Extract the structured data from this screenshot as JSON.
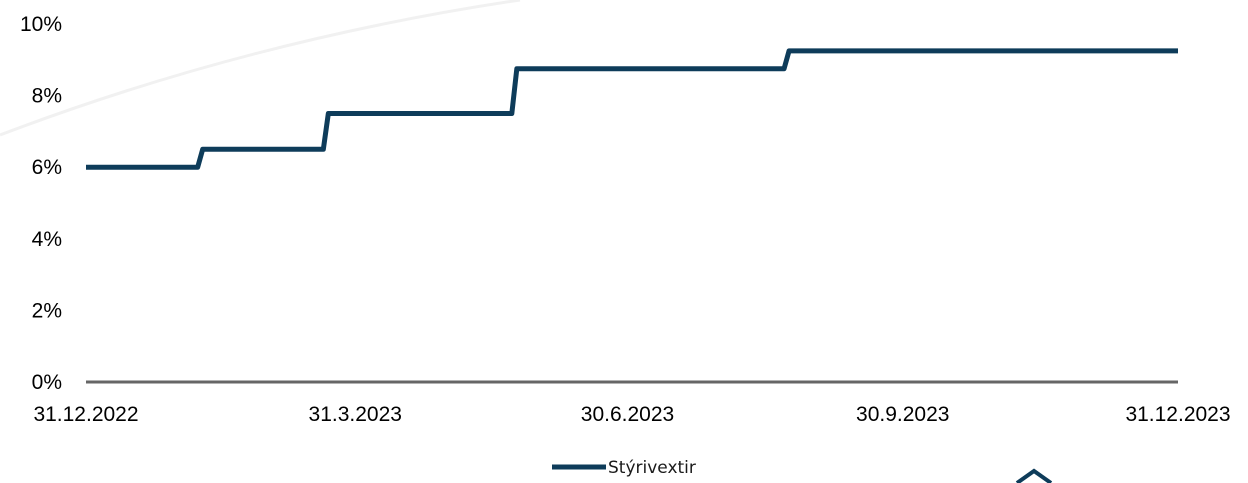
{
  "chart_data": {
    "type": "line",
    "step": true,
    "x_axis_type": "date",
    "y_tick_labels": [
      "0%",
      "2%",
      "4%",
      "6%",
      "8%",
      "10%"
    ],
    "y_ticks": [
      0,
      2,
      4,
      6,
      8,
      10
    ],
    "x_tick_labels": [
      "31.12.2022",
      "31.3.2023",
      "30.6.2023",
      "30.9.2023",
      "31.12.2023"
    ],
    "x_ticks": [
      "2022-12-31",
      "2023-03-31",
      "2023-06-30",
      "2023-09-30",
      "2023-12-31"
    ],
    "xlim": [
      "2022-12-31",
      "2023-12-31"
    ],
    "ylim": [
      0,
      10
    ],
    "grid": false,
    "legend_position": "bottom",
    "series": [
      {
        "name": "Stýrivextir",
        "color": "#0e3c5a",
        "points": [
          {
            "x": "2022-12-31",
            "y": 6.0
          },
          {
            "x": "2023-02-08",
            "y": 6.5
          },
          {
            "x": "2023-03-22",
            "y": 7.5
          },
          {
            "x": "2023-05-24",
            "y": 8.75
          },
          {
            "x": "2023-08-23",
            "y": 9.25
          },
          {
            "x": "2023-12-31",
            "y": 9.25
          }
        ]
      }
    ]
  }
}
